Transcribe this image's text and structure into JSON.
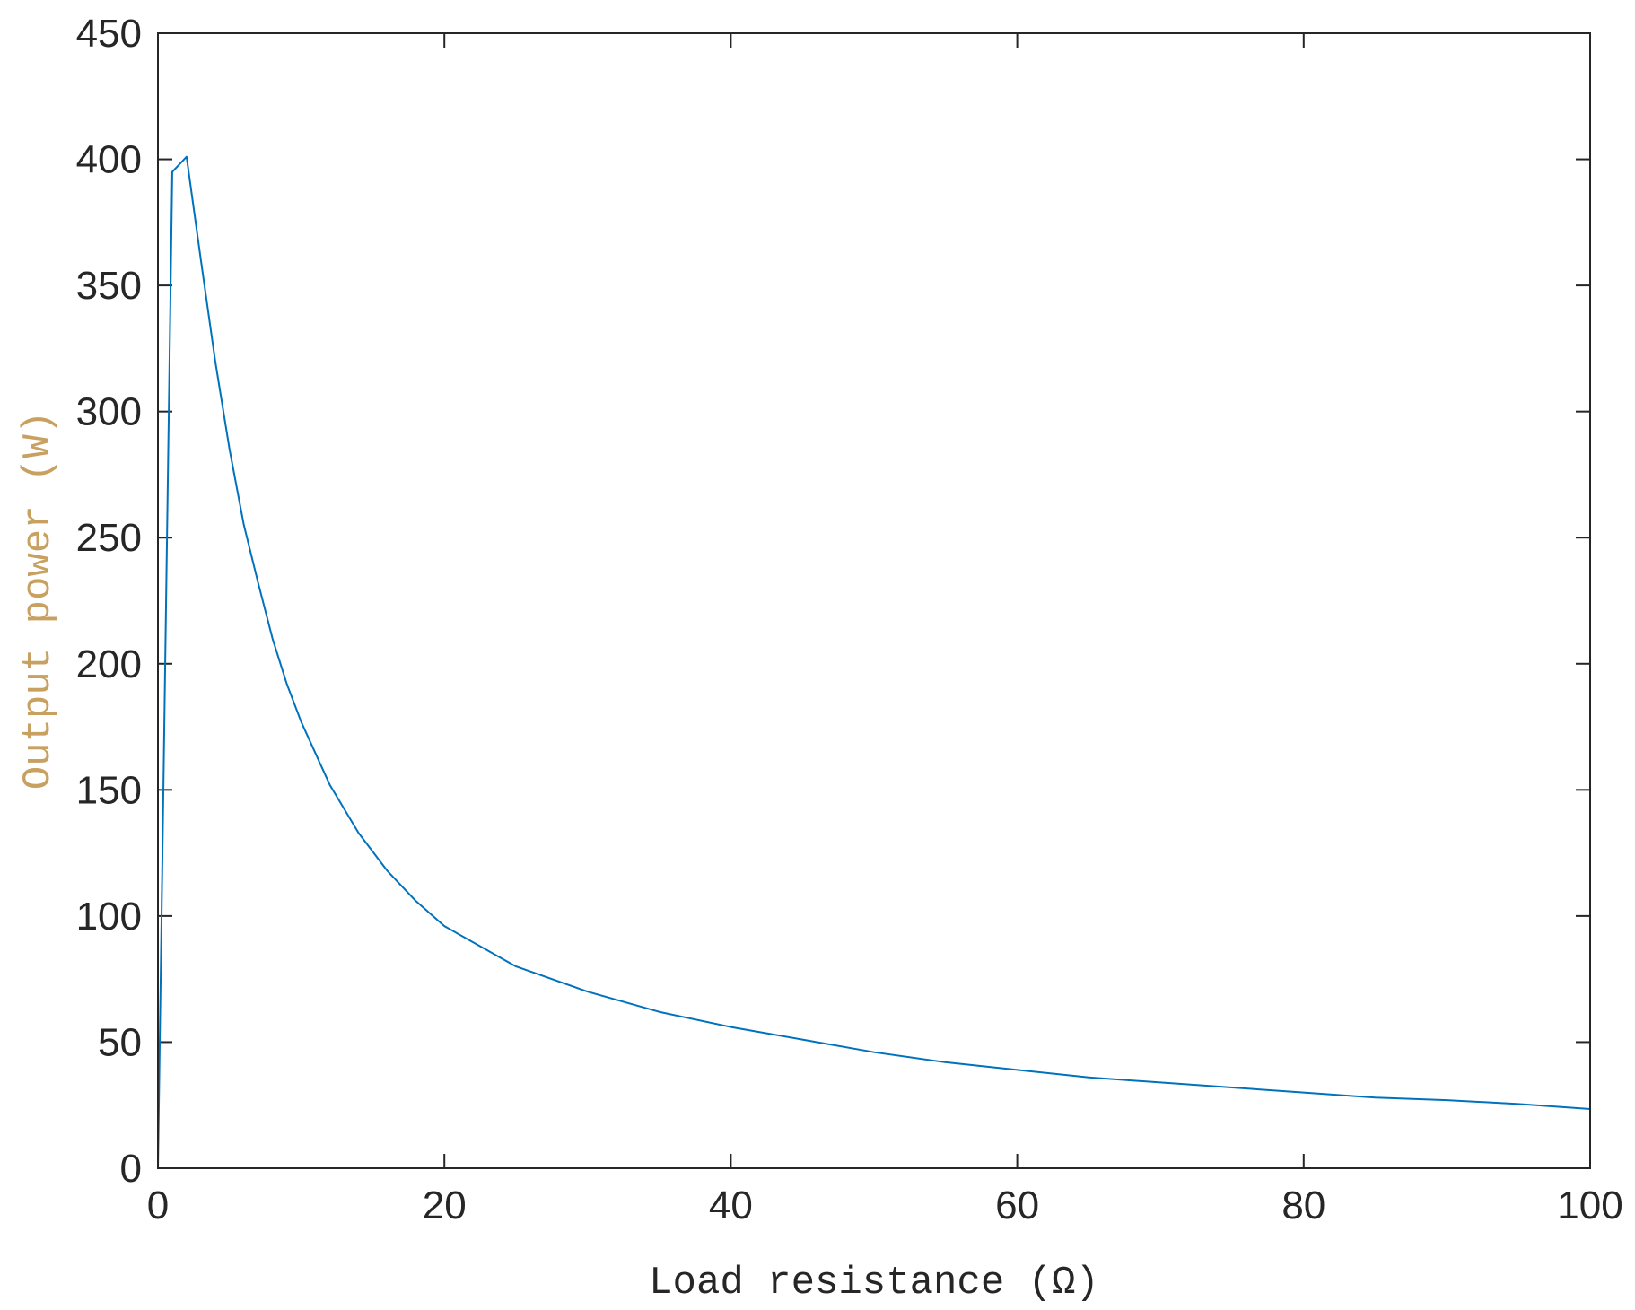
{
  "chart_data": {
    "type": "line",
    "title": "",
    "xlabel": "Load resistance (Ω)",
    "ylabel": "Output power (W)",
    "xlim": [
      0,
      100
    ],
    "ylim": [
      0,
      450
    ],
    "xticks": [
      0,
      20,
      40,
      60,
      80,
      100
    ],
    "yticks": [
      0,
      50,
      100,
      150,
      200,
      250,
      300,
      350,
      400,
      450
    ],
    "xtick_labels": [
      "0",
      "20",
      "40",
      "60",
      "80",
      "100"
    ],
    "ytick_labels": [
      "0",
      "50",
      "100",
      "150",
      "200",
      "250",
      "300",
      "350",
      "400",
      "450"
    ],
    "grid": false,
    "box": true,
    "series": [
      {
        "color": "#0072bd",
        "x": [
          0,
          1,
          2,
          3,
          4,
          5,
          6,
          7,
          8,
          9,
          10,
          12,
          14,
          16,
          18,
          20,
          25,
          30,
          35,
          40,
          45,
          50,
          55,
          60,
          65,
          70,
          75,
          80,
          85,
          90,
          95,
          100
        ],
        "y": [
          0,
          395,
          401,
          360,
          320,
          285,
          255,
          232,
          210,
          192,
          177,
          152,
          133,
          118,
          106,
          96,
          80,
          70,
          62,
          56,
          51,
          46,
          42,
          39,
          36,
          34,
          32,
          30,
          28,
          27,
          25.5,
          23.5
        ]
      }
    ]
  }
}
